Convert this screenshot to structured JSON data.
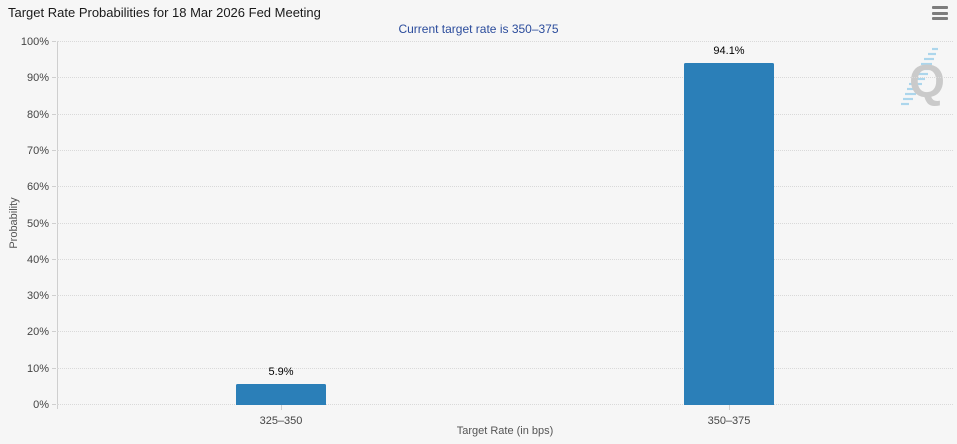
{
  "header": {
    "menu_icon": "hamburger-menu-icon"
  },
  "watermark": {
    "letter": "Q"
  },
  "chart_data": {
    "type": "bar",
    "title": "Target Rate Probabilities for 18 Mar 2026 Fed Meeting",
    "subtitle": "Current target rate is 350–375",
    "categories": [
      "325–350",
      "350–375"
    ],
    "values": [
      5.9,
      94.1
    ],
    "bar_labels": [
      "5.9%",
      "94.1%"
    ],
    "xlabel": "Target Rate (in bps)",
    "ylabel": "Probability",
    "ylim": [
      0,
      100
    ],
    "ytick_step": 10,
    "ytick_labels": [
      "0%",
      "10%",
      "20%",
      "30%",
      "40%",
      "50%",
      "60%",
      "70%",
      "80%",
      "90%",
      "100%"
    ],
    "grid": "dotted-horizontal",
    "legend": "none",
    "bar_color": "#2b7fb8"
  },
  "colors": {
    "page_background": "#f6f6f6",
    "bar": "#2b7fb8",
    "title_text": "#1a1a1a",
    "subtitle_text": "#2b4c9c",
    "gridline": "#d9d9d9",
    "axis_line": "#cfcfcf",
    "tick_label": "#454545",
    "axis_title": "#555555",
    "watermark_letter": "#c8c8c8",
    "watermark_stripes": "#a9d5ec",
    "menu_icon": "#7d7d7d"
  }
}
